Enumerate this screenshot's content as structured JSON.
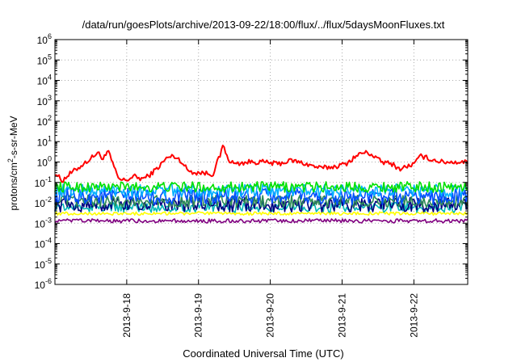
{
  "chart_data": {
    "type": "line",
    "title": "/data/run/goesPlots/archive/2013-09-22/18:00/flux/../flux/5daysMoonFluxes.txt",
    "xlabel": "Coordinated Universal Time (UTC)",
    "ylabel": {
      "pre": "protons/cm",
      "sup": "2",
      "post": "-s-sr-MeV"
    },
    "yscale": "log",
    "ylim": [
      1e-06,
      1000000.0
    ],
    "y_ticks": [
      {
        "base": "10",
        "exp": "6"
      },
      {
        "base": "10",
        "exp": "5"
      },
      {
        "base": "10",
        "exp": "4"
      },
      {
        "base": "10",
        "exp": "3"
      },
      {
        "base": "10",
        "exp": "2"
      },
      {
        "base": "10",
        "exp": "1"
      },
      {
        "base": "10",
        "exp": "0"
      },
      {
        "base": "10",
        "exp": "-1"
      },
      {
        "base": "10",
        "exp": "-2"
      },
      {
        "base": "10",
        "exp": "-3"
      },
      {
        "base": "10",
        "exp": "-4"
      },
      {
        "base": "10",
        "exp": "-5"
      },
      {
        "base": "10",
        "exp": "-6"
      }
    ],
    "xlim": [
      "2013-09-17 00:00",
      "2013-09-22 18:00"
    ],
    "x_ticks": [
      "2013-9-18",
      "2013-9-19",
      "2013-9-20",
      "2013-9-21",
      "2013-9-22"
    ],
    "grid": true,
    "legend": "none",
    "series": [
      {
        "color": "#ff0000",
        "anchors": [
          [
            0.0,
            0.3
          ],
          [
            0.1,
            0.12
          ],
          [
            0.2,
            0.25
          ],
          [
            0.35,
            0.6
          ],
          [
            0.5,
            1.5
          ],
          [
            0.6,
            3.0
          ],
          [
            0.65,
            1.5
          ],
          [
            0.75,
            3.0
          ],
          [
            0.85,
            0.3
          ],
          [
            0.9,
            0.13
          ],
          [
            1.0,
            0.13
          ],
          [
            1.1,
            0.2
          ],
          [
            1.2,
            0.15
          ],
          [
            1.3,
            0.2
          ],
          [
            1.45,
            0.6
          ],
          [
            1.55,
            1.5
          ],
          [
            1.65,
            2.0
          ],
          [
            1.75,
            1.2
          ],
          [
            1.85,
            0.4
          ],
          [
            1.95,
            0.3
          ],
          [
            2.05,
            0.3
          ],
          [
            2.2,
            0.25
          ],
          [
            2.25,
            0.8
          ],
          [
            2.3,
            2.0
          ],
          [
            2.35,
            8.0
          ],
          [
            2.4,
            1.5
          ],
          [
            2.5,
            0.8
          ],
          [
            2.7,
            1.0
          ],
          [
            2.9,
            1.0
          ],
          [
            3.1,
            0.8
          ],
          [
            3.3,
            1.2
          ],
          [
            3.5,
            0.8
          ],
          [
            3.7,
            0.5
          ],
          [
            3.9,
            0.6
          ],
          [
            4.05,
            0.8
          ],
          [
            4.2,
            2.0
          ],
          [
            4.3,
            3.0
          ],
          [
            4.4,
            2.5
          ],
          [
            4.55,
            1.0
          ],
          [
            4.7,
            0.8
          ],
          [
            4.8,
            0.45
          ],
          [
            4.9,
            0.6
          ],
          [
            5.0,
            0.8
          ],
          [
            5.1,
            2.0
          ],
          [
            5.2,
            1.5
          ],
          [
            5.3,
            1.2
          ],
          [
            5.4,
            1.0
          ],
          [
            5.5,
            1.0
          ],
          [
            5.75,
            1.0
          ]
        ],
        "noise": 0.12
      },
      {
        "color": "#00e000",
        "base": 0.06,
        "noise": 0.26
      },
      {
        "color": "#00b0ff",
        "base": 0.04,
        "noise": 0.32
      },
      {
        "color": "#0050ff",
        "base": 0.02,
        "noise": 0.4
      },
      {
        "color": "#2e8b57",
        "base": 0.012,
        "noise": 0.3
      },
      {
        "color": "#000080",
        "base": 0.008,
        "noise": 0.35
      },
      {
        "color": "#00b8b8",
        "base": 0.006,
        "noise": 0.25
      },
      {
        "color": "#ffff00",
        "base": 0.003,
        "noise": 0.08
      },
      {
        "color": "#800080",
        "base": 0.0013,
        "noise": 0.1
      }
    ]
  }
}
